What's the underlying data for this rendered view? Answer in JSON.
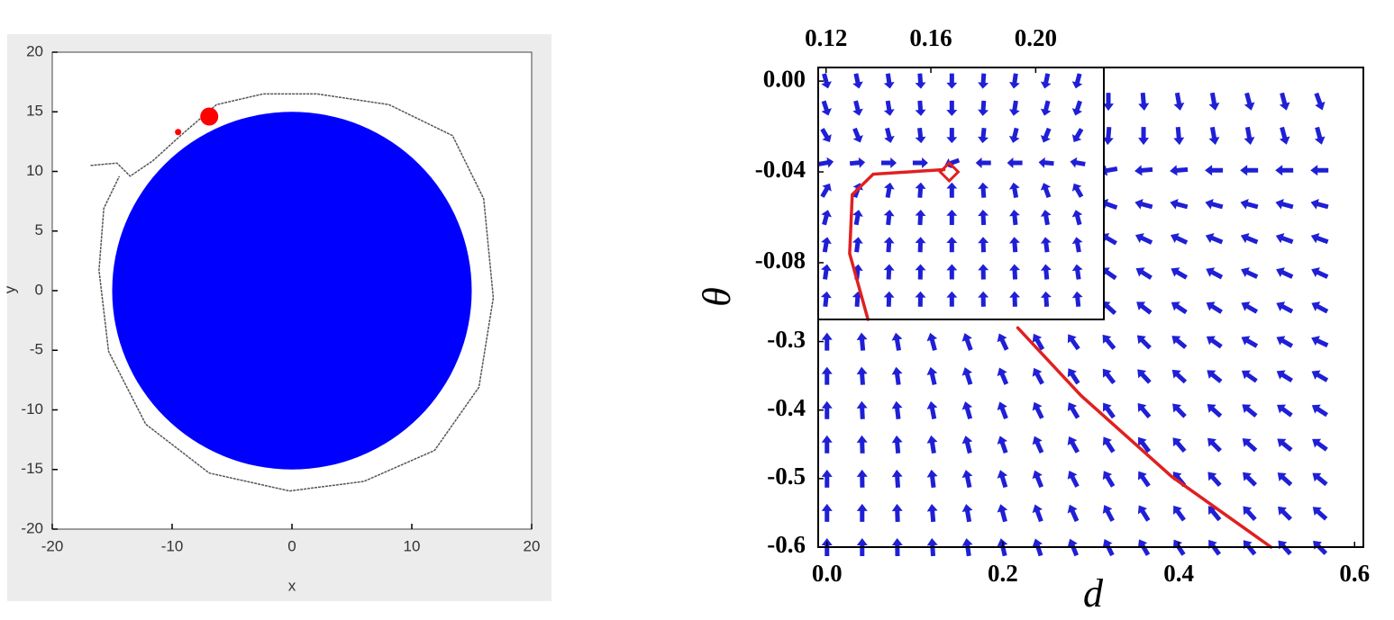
{
  "chart_data": [
    {
      "type": "trajectory",
      "xlabel": "x",
      "ylabel": "y",
      "xlim": [
        -20,
        20
      ],
      "ylim": [
        -20,
        20
      ],
      "xticks": [
        -20,
        -10,
        0,
        10,
        20
      ],
      "yticks": [
        -20,
        -15,
        -10,
        -5,
        0,
        5,
        10,
        15,
        20
      ],
      "circle": {
        "cx": 0,
        "cy": 0,
        "r": 15,
        "color": "#0000ff"
      },
      "trajectory": {
        "color": "#555555",
        "x": [
          -16.8,
          -14.6,
          -13.5,
          -11.6,
          -9.3,
          -6.3,
          -2.4,
          2.1,
          8.1,
          13.4,
          16,
          16.8,
          15.6,
          11.9,
          6,
          -0.2,
          -6.9,
          -12.2,
          -15.3,
          -16.1,
          -15.7,
          -14.4
        ],
        "y": [
          10.5,
          10.7,
          9.6,
          10.9,
          13,
          15.6,
          16.5,
          16.5,
          15.6,
          13,
          7.7,
          -0.6,
          -8.1,
          -13.4,
          -16,
          -16.8,
          -15.3,
          -11.2,
          -5.1,
          1.7,
          6.9,
          9.6
        ]
      },
      "markers": {
        "x": [
          -6.9,
          -9.5
        ],
        "y": [
          14.6,
          13.3
        ],
        "color": "#ff0000"
      }
    },
    {
      "type": "quiver",
      "xlabel": "d",
      "ylabel": "θ",
      "xlim": [
        -0.01,
        0.61
      ],
      "ylim": [
        -0.6,
        0.1
      ],
      "xticks": [
        {
          "value": 0,
          "label": "0.0"
        },
        0.2,
        0.4,
        0.6
      ],
      "yticks": [
        -0.3,
        -0.4,
        -0.5,
        -0.6
      ],
      "arrow_color": "#1f1fd6",
      "grid_x": [
        0,
        0.04,
        0.08,
        0.12,
        0.16,
        0.2,
        0.24,
        0.28,
        0.32,
        0.36,
        0.4,
        0.44,
        0.48,
        0.52,
        0.56
      ],
      "grid_y": [
        0.05,
        0,
        -0.05,
        -0.1,
        -0.15,
        -0.2,
        -0.25,
        -0.3,
        -0.35,
        -0.4,
        -0.45,
        -0.5,
        -0.55,
        -0.6
      ],
      "angles": [
        [
          null,
          null,
          null,
          null,
          null,
          null,
          null,
          null,
          270,
          275,
          280,
          280,
          285,
          285,
          290
        ],
        [
          null,
          null,
          null,
          null,
          null,
          null,
          null,
          null,
          265,
          270,
          275,
          280,
          280,
          285,
          285
        ],
        [
          null,
          null,
          null,
          null,
          null,
          null,
          null,
          null,
          190,
          185,
          185,
          180,
          180,
          180,
          180
        ],
        [
          null,
          null,
          null,
          null,
          null,
          null,
          null,
          null,
          160,
          165,
          165,
          165,
          165,
          165,
          165
        ],
        [
          null,
          null,
          null,
          null,
          null,
          null,
          null,
          null,
          150,
          155,
          155,
          158,
          158,
          160,
          160
        ],
        [
          null,
          null,
          null,
          null,
          null,
          null,
          null,
          null,
          145,
          148,
          150,
          152,
          155,
          155,
          155
        ],
        [
          null,
          null,
          null,
          null,
          null,
          null,
          null,
          null,
          138,
          142,
          146,
          148,
          150,
          152,
          152
        ],
        [
          90,
          95,
          100,
          105,
          110,
          115,
          120,
          125,
          130,
          135,
          140,
          145,
          150,
          150,
          155
        ],
        [
          90,
          94,
          98,
          103,
          108,
          113,
          118,
          123,
          128,
          133,
          137,
          141,
          145,
          148,
          150
        ],
        [
          90,
          93,
          97,
          101,
          106,
          111,
          116,
          121,
          126,
          130,
          134,
          138,
          141,
          144,
          147
        ],
        [
          90,
          92,
          95,
          99,
          104,
          109,
          114,
          119,
          123,
          127,
          131,
          135,
          138,
          141,
          144
        ],
        [
          90,
          91,
          94,
          97,
          102,
          107,
          112,
          117,
          121,
          125,
          129,
          132,
          135,
          138,
          141
        ],
        [
          90,
          90,
          92,
          95,
          100,
          105,
          110,
          114,
          118,
          122,
          126,
          129,
          132,
          135,
          138
        ],
        [
          90,
          90,
          91,
          94,
          98,
          103,
          108,
          112,
          116,
          120,
          123,
          126,
          129,
          132,
          135
        ]
      ],
      "curves": [
        {
          "color": "#e02020",
          "x": [
            0.217,
            0.289,
            0.392,
            0.505
          ],
          "y": [
            -0.28,
            -0.379,
            -0.497,
            -0.6
          ]
        }
      ]
    },
    {
      "type": "quiver",
      "xlim": [
        0.117,
        0.226
      ],
      "ylim": [
        -0.105,
        0.006
      ],
      "xticks": [
        0.12,
        0.16,
        {
          "value": 0.2,
          "label": "0.20"
        }
      ],
      "yticks": [
        {
          "value": 0,
          "label": "0.00"
        },
        -0.04,
        -0.08
      ],
      "arrow_color": "#1f1fd6",
      "grid_x": [
        0.12,
        0.132,
        0.144,
        0.156,
        0.168,
        0.18,
        0.192,
        0.204,
        0.216
      ],
      "grid_y": [
        0,
        -0.012,
        -0.024,
        -0.036,
        -0.048,
        -0.06,
        -0.072,
        -0.084,
        -0.096
      ],
      "angles": [
        [
          285,
          282,
          278,
          274,
          270,
          266,
          262,
          258,
          255
        ],
        [
          288,
          284,
          279,
          274,
          270,
          266,
          261,
          256,
          252
        ],
        [
          300,
          292,
          284,
          276,
          270,
          264,
          256,
          248,
          240
        ],
        [
          10,
          5,
          0,
          0,
          200,
          180,
          180,
          175,
          170
        ],
        [
          60,
          70,
          80,
          86,
          90,
          94,
          100,
          110,
          120
        ],
        [
          75,
          80,
          84,
          87,
          90,
          93,
          96,
          100,
          105
        ],
        [
          80,
          83,
          86,
          88,
          90,
          92,
          94,
          97,
          100
        ],
        [
          82,
          84,
          87,
          89,
          90,
          91,
          93,
          95,
          98
        ],
        [
          84,
          86,
          88,
          89,
          90,
          91,
          92,
          94,
          96
        ]
      ],
      "curves": [
        {
          "color": "#e02020",
          "x": [
            0.136,
            0.129,
            0.13,
            0.138,
            0.165
          ],
          "y": [
            -0.105,
            -0.076,
            -0.05,
            -0.041,
            -0.039
          ]
        }
      ],
      "markers": {
        "x": [
          0.167
        ],
        "y": [
          -0.04
        ],
        "color": "#e02020"
      }
    }
  ]
}
